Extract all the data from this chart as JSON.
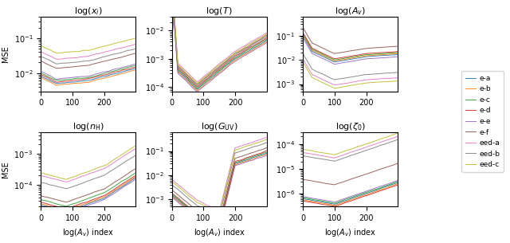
{
  "n_points": 300,
  "legend_labels": [
    "e-a",
    "e-b",
    "e-c",
    "e-d",
    "e-e",
    "e-f",
    "eed-a",
    "eed-b",
    "eed-c"
  ],
  "colors": [
    "#1f77b4",
    "#ff7f0e",
    "#2ca02c",
    "#d62728",
    "#9467bd",
    "#8c564b",
    "#e377c2",
    "#7f7f7f",
    "#bcbd22"
  ],
  "xlabel": "log($A_v$) index",
  "ylabel": "MSE",
  "figsize": [
    6.4,
    3.05
  ],
  "dpi": 100
}
